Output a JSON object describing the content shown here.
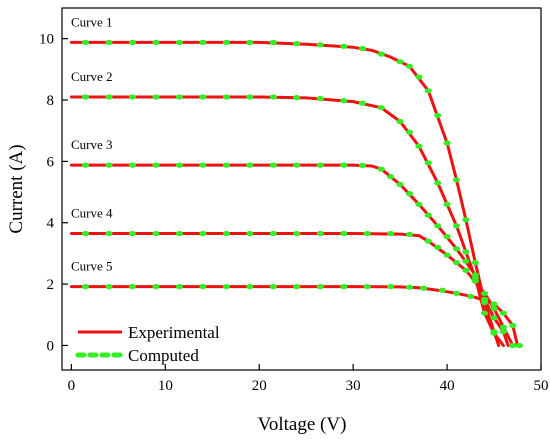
{
  "chart_data": {
    "type": "line",
    "title": "",
    "xlabel": "Voltage (V)",
    "ylabel": "Current (A)",
    "xlim": [
      -1,
      50
    ],
    "ylim": [
      -0.8,
      11
    ],
    "x_ticks": [
      0,
      10,
      20,
      30,
      40,
      50
    ],
    "y_ticks": [
      0,
      2,
      4,
      6,
      8,
      10
    ],
    "grid": false,
    "legend_position": "bottom-left",
    "legend": [
      "Experimental",
      "Computed"
    ],
    "colors": {
      "experimental": "#ee1111",
      "computed": "#33ee22"
    },
    "series": [
      {
        "label": "Curve 1",
        "experimental": [
          [
            0,
            9.88
          ],
          [
            10,
            9.88
          ],
          [
            20,
            9.88
          ],
          [
            25,
            9.82
          ],
          [
            30,
            9.72
          ],
          [
            32,
            9.62
          ],
          [
            34,
            9.4
          ],
          [
            36,
            9.1
          ],
          [
            38,
            8.3
          ],
          [
            40,
            6.6
          ],
          [
            41,
            5.4
          ],
          [
            42,
            4.1
          ],
          [
            43,
            2.7
          ],
          [
            44,
            1.4
          ],
          [
            45,
            0.45
          ],
          [
            45.5,
            0
          ]
        ],
        "computed": [
          [
            1.5,
            9.88
          ],
          [
            4,
            9.88
          ],
          [
            6.5,
            9.88
          ],
          [
            9,
            9.88
          ],
          [
            11.5,
            9.88
          ],
          [
            14,
            9.88
          ],
          [
            16.5,
            9.88
          ],
          [
            19,
            9.88
          ],
          [
            21.5,
            9.88
          ],
          [
            24,
            9.84
          ],
          [
            26.5,
            9.8
          ],
          [
            29,
            9.75
          ],
          [
            31,
            9.68
          ],
          [
            33,
            9.5
          ],
          [
            35,
            9.25
          ],
          [
            36,
            9.1
          ],
          [
            37,
            8.75
          ],
          [
            38,
            8.3
          ],
          [
            39,
            7.5
          ],
          [
            40,
            6.6
          ],
          [
            41,
            5.4
          ],
          [
            42,
            4.1
          ],
          [
            43,
            2.7
          ],
          [
            44,
            1.4
          ],
          [
            45,
            0.45
          ]
        ]
      },
      {
        "label": "Curve 2",
        "experimental": [
          [
            0,
            8.1
          ],
          [
            10,
            8.1
          ],
          [
            20,
            8.1
          ],
          [
            25,
            8.07
          ],
          [
            30,
            7.95
          ],
          [
            33,
            7.75
          ],
          [
            35,
            7.3
          ],
          [
            37,
            6.5
          ],
          [
            39,
            5.3
          ],
          [
            41,
            3.9
          ],
          [
            43,
            2.2
          ],
          [
            44,
            1.05
          ],
          [
            45,
            0.4
          ],
          [
            46,
            0
          ]
        ],
        "computed": [
          [
            1.5,
            8.1
          ],
          [
            4,
            8.1
          ],
          [
            6.5,
            8.1
          ],
          [
            9,
            8.1
          ],
          [
            11.5,
            8.1
          ],
          [
            14,
            8.1
          ],
          [
            16.5,
            8.1
          ],
          [
            19,
            8.1
          ],
          [
            21.5,
            8.1
          ],
          [
            24,
            8.08
          ],
          [
            26.5,
            8.05
          ],
          [
            29,
            7.98
          ],
          [
            31,
            7.9
          ],
          [
            33,
            7.75
          ],
          [
            35,
            7.3
          ],
          [
            36,
            6.95
          ],
          [
            37,
            6.5
          ],
          [
            38,
            5.95
          ],
          [
            39,
            5.3
          ],
          [
            40,
            4.6
          ],
          [
            41,
            3.9
          ],
          [
            42,
            3.05
          ],
          [
            43,
            2.2
          ],
          [
            44,
            1.05
          ],
          [
            45,
            0.4
          ]
        ]
      },
      {
        "label": "Curve 3",
        "experimental": [
          [
            0,
            5.88
          ],
          [
            10,
            5.88
          ],
          [
            20,
            5.88
          ],
          [
            30,
            5.88
          ],
          [
            32,
            5.85
          ],
          [
            33,
            5.75
          ],
          [
            35,
            5.25
          ],
          [
            37,
            4.6
          ],
          [
            39,
            3.9
          ],
          [
            41,
            3.15
          ],
          [
            43,
            2.3
          ],
          [
            44,
            1.5
          ],
          [
            45,
            0.9
          ],
          [
            46,
            0.45
          ],
          [
            46.5,
            0
          ]
        ],
        "computed": [
          [
            1.5,
            5.88
          ],
          [
            4,
            5.88
          ],
          [
            6.5,
            5.88
          ],
          [
            9,
            5.88
          ],
          [
            11.5,
            5.88
          ],
          [
            14,
            5.88
          ],
          [
            16.5,
            5.88
          ],
          [
            19,
            5.88
          ],
          [
            21.5,
            5.88
          ],
          [
            24,
            5.88
          ],
          [
            26.5,
            5.88
          ],
          [
            29,
            5.88
          ],
          [
            31,
            5.87
          ],
          [
            33,
            5.75
          ],
          [
            34,
            5.5
          ],
          [
            35,
            5.25
          ],
          [
            36,
            4.95
          ],
          [
            37,
            4.6
          ],
          [
            38,
            4.25
          ],
          [
            39,
            3.9
          ],
          [
            40,
            3.55
          ],
          [
            41,
            3.15
          ],
          [
            42,
            2.75
          ],
          [
            43,
            2.3
          ],
          [
            44,
            1.5
          ],
          [
            45,
            0.9
          ],
          [
            46,
            0.45
          ]
        ]
      },
      {
        "label": "Curve 4",
        "experimental": [
          [
            0,
            3.65
          ],
          [
            10,
            3.65
          ],
          [
            20,
            3.65
          ],
          [
            30,
            3.65
          ],
          [
            35,
            3.63
          ],
          [
            37,
            3.58
          ],
          [
            38,
            3.4
          ],
          [
            40,
            2.95
          ],
          [
            42,
            2.45
          ],
          [
            44,
            1.7
          ],
          [
            45,
            1.2
          ],
          [
            46,
            0.6
          ],
          [
            47,
            0
          ]
        ],
        "computed": [
          [
            1.5,
            3.65
          ],
          [
            4,
            3.65
          ],
          [
            6.5,
            3.65
          ],
          [
            9,
            3.65
          ],
          [
            11.5,
            3.65
          ],
          [
            14,
            3.65
          ],
          [
            16.5,
            3.65
          ],
          [
            19,
            3.65
          ],
          [
            21.5,
            3.65
          ],
          [
            24,
            3.65
          ],
          [
            26.5,
            3.65
          ],
          [
            29,
            3.65
          ],
          [
            31.5,
            3.65
          ],
          [
            34,
            3.65
          ],
          [
            36,
            3.62
          ],
          [
            38,
            3.4
          ],
          [
            39,
            3.2
          ],
          [
            40,
            2.95
          ],
          [
            41,
            2.7
          ],
          [
            42,
            2.45
          ],
          [
            43,
            2.1
          ],
          [
            44,
            1.7
          ],
          [
            45,
            1.2
          ],
          [
            46,
            0.6
          ],
          [
            47,
            0
          ]
        ]
      },
      {
        "label": "Curve 5",
        "experimental": [
          [
            0,
            1.92
          ],
          [
            10,
            1.92
          ],
          [
            20,
            1.92
          ],
          [
            30,
            1.92
          ],
          [
            35,
            1.91
          ],
          [
            37,
            1.88
          ],
          [
            39,
            1.8
          ],
          [
            41,
            1.7
          ],
          [
            43,
            1.57
          ],
          [
            45,
            1.35
          ],
          [
            46,
            1.05
          ],
          [
            47,
            0.65
          ],
          [
            47.5,
            0
          ]
        ],
        "computed": [
          [
            1.5,
            1.92
          ],
          [
            4,
            1.92
          ],
          [
            6.5,
            1.92
          ],
          [
            9,
            1.92
          ],
          [
            11.5,
            1.92
          ],
          [
            14,
            1.92
          ],
          [
            16.5,
            1.92
          ],
          [
            19,
            1.92
          ],
          [
            21.5,
            1.92
          ],
          [
            24,
            1.92
          ],
          [
            26.5,
            1.92
          ],
          [
            29,
            1.92
          ],
          [
            31.5,
            1.92
          ],
          [
            34,
            1.92
          ],
          [
            36,
            1.9
          ],
          [
            37.5,
            1.87
          ],
          [
            39.5,
            1.8
          ],
          [
            41,
            1.7
          ],
          [
            42.5,
            1.6
          ],
          [
            44,
            1.48
          ],
          [
            45,
            1.35
          ],
          [
            46,
            1.05
          ],
          [
            47,
            0.65
          ],
          [
            47.7,
            0
          ]
        ]
      }
    ]
  }
}
